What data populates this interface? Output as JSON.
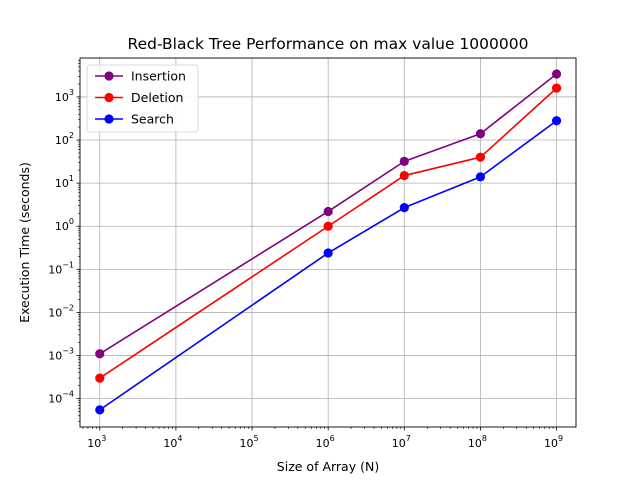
{
  "chart_data": {
    "type": "line",
    "title": "Red-Black Tree Performance on max value 1000000",
    "xlabel": "Size of Array (N)",
    "ylabel": "Execution Time (seconds)",
    "xscale": "log",
    "yscale": "log",
    "xlim": [
      550.0,
      1800000000.0
    ],
    "ylim": [
      2.2e-05,
      8000.0
    ],
    "x_ticks": [
      1000.0,
      10000.0,
      100000.0,
      1000000.0,
      10000000.0,
      100000000.0,
      1000000000.0
    ],
    "y_ticks": [
      0.0001,
      0.001,
      0.01,
      0.1,
      1.0,
      10.0,
      100.0,
      1000.0
    ],
    "grid": true,
    "legend_position": "upper-left",
    "x": [
      1000,
      1000000,
      10000000,
      100000000,
      1000000000
    ],
    "series": [
      {
        "name": "Insertion",
        "color": "#800080",
        "values": [
          0.0011,
          2.2,
          32,
          140,
          3400
        ]
      },
      {
        "name": "Deletion",
        "color": "#ff0000",
        "values": [
          0.0003,
          1.0,
          15,
          40,
          1600
        ]
      },
      {
        "name": "Search",
        "color": "#0000ff",
        "values": [
          5.5e-05,
          0.24,
          2.7,
          14,
          280
        ]
      }
    ]
  }
}
